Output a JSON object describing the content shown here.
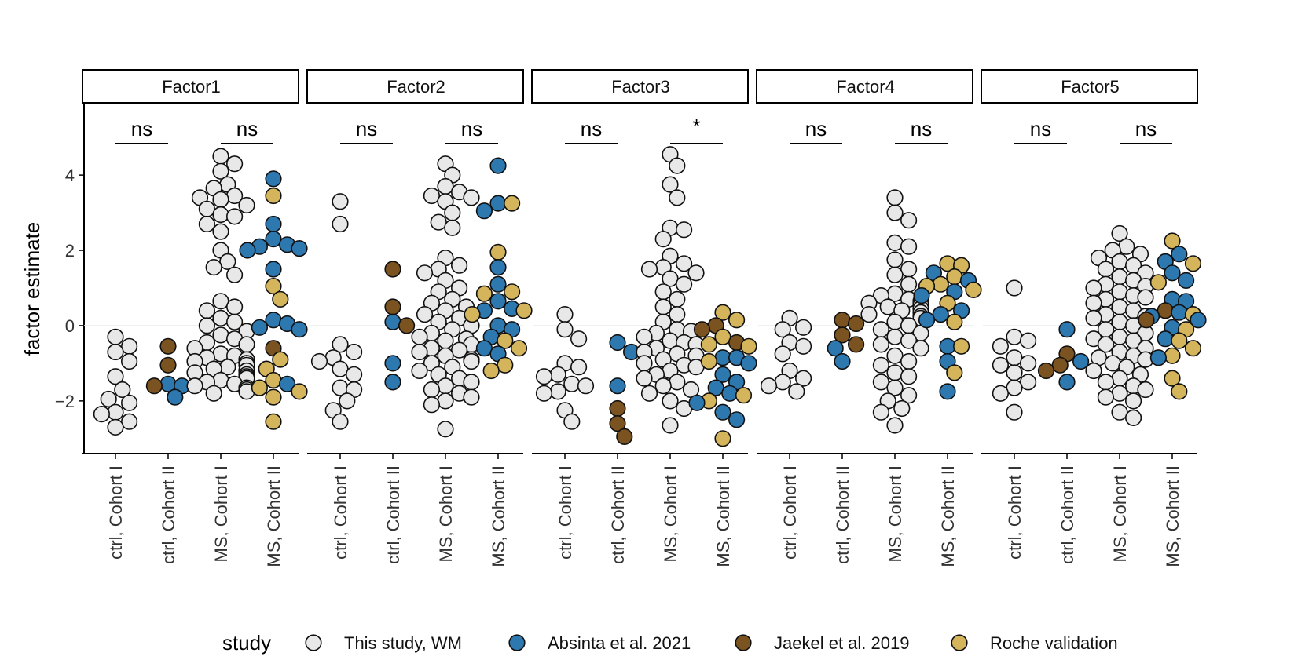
{
  "chart_data": {
    "type": "scatter",
    "subtype": "beeswarm, faceted",
    "ylabel": "factor estimate",
    "xlabel": "",
    "ylim": [
      -3.4,
      5.9
    ],
    "yticks": [
      -2,
      0,
      2,
      4
    ],
    "categories": [
      "ctrl, Cohort I",
      "ctrl, Cohort II",
      "MS, Cohort I",
      "MS, Cohort II"
    ],
    "legend": {
      "title": "study",
      "position": "bottom",
      "entries": [
        {
          "key": "wm",
          "label": "This study, WM",
          "color": "#e8e8e8"
        },
        {
          "key": "absinta",
          "label": "Absinta et al. 2021",
          "color": "#2e78b0"
        },
        {
          "key": "jaekel",
          "label": "Jaekel et al. 2019",
          "color": "#7a5320"
        },
        {
          "key": "roche",
          "label": "Roche validation",
          "color": "#d4b55c"
        }
      ]
    },
    "facets": [
      {
        "title": "Factor1",
        "comparisons": [
          "ns",
          "ns"
        ],
        "groups": [
          {
            "wm": [
              -0.3,
              -0.55,
              -0.95,
              -1.35,
              -1.7,
              -1.95,
              -2.05,
              -2.3,
              -2.35,
              -2.55,
              -2.7,
              -0.7
            ]
          },
          {
            "absinta": [
              -1.55,
              -1.6,
              -1.9
            ],
            "jaekel": [
              -1.05,
              -0.55,
              -1.6
            ]
          },
          {
            "wm": [
              4.5,
              4.3,
              4.1,
              3.75,
              3.65,
              3.45,
              3.4,
              3.35,
              3.2,
              3.1,
              2.95,
              2.9,
              2.7,
              2.5,
              2.0,
              1.7,
              1.55,
              1.35,
              0.65,
              0.5,
              0.4,
              0.2,
              0.1,
              0.0,
              -0.15,
              -0.25,
              -0.35,
              -0.45,
              -0.6,
              -0.75,
              -0.85,
              -0.9,
              -0.95,
              -1.0,
              -1.05,
              -1.1,
              -1.15,
              -1.2,
              -1.25,
              -1.3,
              -1.35,
              -1.4,
              -1.45,
              -1.5,
              -1.55,
              -1.6,
              -1.65,
              -1.7,
              -1.75,
              -1.8,
              -0.8,
              -1.0,
              -1.2,
              -1.4,
              -0.5
            ]
          },
          {
            "absinta": [
              3.9,
              2.7,
              2.3,
              2.15,
              2.1,
              2.05,
              2.0,
              1.5,
              0.15,
              0.05,
              -0.05,
              -0.1,
              -1.55
            ],
            "jaekel": [
              -0.6
            ],
            "roche": [
              3.45,
              1.05,
              0.7,
              -0.9,
              -1.15,
              -1.45,
              -1.65,
              -1.75,
              -1.9,
              -2.55
            ]
          }
        ]
      },
      {
        "title": "Factor2",
        "comparisons": [
          "ns",
          "ns"
        ],
        "groups": [
          {
            "wm": [
              3.3,
              2.7,
              -0.5,
              -0.7,
              -0.85,
              -0.95,
              -1.15,
              -1.3,
              -1.65,
              -1.7,
              -2.0,
              -2.25,
              -2.55
            ]
          },
          {
            "absinta": [
              0.1,
              -1.0,
              -1.5
            ],
            "jaekel": [
              1.5,
              0.5,
              0.0
            ]
          },
          {
            "wm": [
              4.3,
              4.0,
              3.7,
              3.55,
              3.45,
              3.4,
              3.3,
              3.0,
              2.75,
              2.6,
              1.8,
              1.6,
              1.5,
              1.4,
              1.2,
              1.0,
              0.9,
              0.7,
              0.6,
              0.5,
              0.4,
              0.3,
              0.2,
              0.1,
              0.0,
              -0.1,
              -0.2,
              -0.3,
              -0.4,
              -0.5,
              -0.6,
              -0.7,
              -0.8,
              -0.9,
              -1.0,
              -1.1,
              -1.2,
              -1.3,
              -1.4,
              -1.5,
              -1.6,
              -1.7,
              -1.8,
              -1.9,
              -2.0,
              -2.1,
              -2.75,
              -0.35,
              -0.65,
              -0.95
            ]
          },
          {
            "absinta": [
              4.25,
              3.25,
              3.05,
              1.55,
              1.1,
              0.65,
              0.45,
              0.4,
              0.0,
              -0.1,
              -0.3,
              -0.6,
              -0.75
            ],
            "roche": [
              3.25,
              1.95,
              0.9,
              0.85,
              0.4,
              0.3,
              -0.4,
              -0.6,
              -1.05,
              -1.2
            ]
          }
        ]
      },
      {
        "title": "Factor3",
        "comparisons": [
          "ns",
          "*"
        ],
        "groups": [
          {
            "wm": [
              0.3,
              -0.1,
              -0.35,
              -1.0,
              -1.1,
              -1.3,
              -1.35,
              -1.55,
              -1.6,
              -1.75,
              -1.8,
              -2.25,
              -2.55
            ]
          },
          {
            "absinta": [
              -0.45,
              -0.7,
              -1.6
            ],
            "jaekel": [
              -2.2,
              -2.6,
              -2.95
            ]
          },
          {
            "wm": [
              4.55,
              4.25,
              3.75,
              3.4,
              2.6,
              2.55,
              2.3,
              1.85,
              1.65,
              1.55,
              1.5,
              1.4,
              1.25,
              1.1,
              0.9,
              0.7,
              0.5,
              0.3,
              0.1,
              -0.1,
              -0.2,
              -0.3,
              -0.4,
              -0.5,
              -0.6,
              -0.7,
              -0.8,
              -0.9,
              -1.0,
              -1.1,
              -1.2,
              -1.3,
              -1.4,
              -1.5,
              -1.6,
              -1.7,
              -1.8,
              -2.0,
              -2.2,
              -2.65,
              -0.45,
              -0.75,
              -1.05,
              -0.15
            ]
          },
          {
            "absinta": [
              -0.85,
              -0.85,
              -1.0,
              -1.3,
              -1.5,
              -1.65,
              -1.8,
              -2.05,
              -2.3,
              -2.5
            ],
            "jaekel": [
              0.0,
              -0.1,
              -0.45
            ],
            "roche": [
              0.35,
              0.15,
              -0.3,
              -0.5,
              -0.55,
              -0.95,
              -1.85,
              -2.0,
              -3.0
            ]
          }
        ]
      },
      {
        "title": "Factor4",
        "comparisons": [
          "ns",
          "ns"
        ],
        "groups": [
          {
            "wm": [
              0.2,
              -0.05,
              -0.1,
              -0.45,
              -0.55,
              -0.75,
              -1.2,
              -1.4,
              -1.5,
              -1.6,
              -1.75
            ]
          },
          {
            "absinta": [
              -0.6,
              -0.95
            ],
            "jaekel": [
              -0.25,
              -0.5,
              0.15,
              0.05
            ]
          },
          {
            "wm": [
              3.4,
              3.0,
              2.8,
              2.2,
              2.1,
              1.75,
              1.5,
              1.35,
              1.1,
              0.85,
              0.8,
              0.7,
              0.65,
              0.6,
              0.55,
              0.5,
              0.45,
              0.4,
              0.35,
              0.3,
              0.2,
              0.1,
              0.0,
              -0.1,
              -0.2,
              -0.3,
              -0.4,
              -0.5,
              -0.6,
              -0.8,
              -0.95,
              -1.05,
              -1.25,
              -1.35,
              -1.5,
              -1.65,
              -1.85,
              -2.0,
              -2.2,
              -2.3,
              -2.65,
              0.6,
              0.45,
              0.25
            ]
          },
          {
            "absinta": [
              1.4,
              1.2,
              0.9,
              0.8,
              0.4,
              0.3,
              0.15,
              -0.55,
              -0.95,
              -1.75
            ],
            "roche": [
              1.65,
              1.6,
              1.3,
              1.1,
              1.05,
              0.95,
              0.6,
              0.1,
              -0.55,
              -1.25
            ]
          }
        ]
      },
      {
        "title": "Factor5",
        "comparisons": [
          "ns",
          "ns"
        ],
        "groups": [
          {
            "wm": [
              1.0,
              -0.3,
              -0.4,
              -0.55,
              -0.85,
              -1.0,
              -1.05,
              -1.25,
              -1.5,
              -1.65,
              -1.8,
              -2.3
            ]
          },
          {
            "absinta": [
              -0.1,
              -0.95,
              -1.5
            ],
            "jaekel": [
              -0.75,
              -1.05,
              -1.2
            ]
          },
          {
            "wm": [
              2.45,
              2.1,
              2.0,
              1.9,
              1.8,
              1.7,
              1.6,
              1.5,
              1.4,
              1.3,
              1.2,
              1.1,
              1.0,
              0.9,
              0.8,
              0.7,
              0.6,
              0.5,
              0.4,
              0.3,
              0.2,
              0.1,
              0.0,
              -0.1,
              -0.2,
              -0.3,
              -0.4,
              -0.5,
              -0.6,
              -0.7,
              -0.8,
              -0.9,
              -1.0,
              -1.1,
              -1.2,
              -1.3,
              -1.4,
              -1.5,
              -1.6,
              -1.7,
              -1.8,
              -1.9,
              -2.0,
              -2.3,
              -2.45,
              -0.85,
              1.05,
              0.75,
              -0.35,
              0.25
            ]
          },
          {
            "absinta": [
              1.9,
              1.7,
              1.4,
              1.2,
              0.7,
              0.65,
              0.35,
              0.25,
              0.15,
              -0.05,
              -0.35,
              -0.85
            ],
            "jaekel": [
              0.15,
              0.4
            ],
            "roche": [
              2.25,
              1.65,
              1.15,
              0.3,
              -0.1,
              -0.4,
              -0.6,
              -0.8,
              -1.4,
              -1.75
            ]
          }
        ]
      }
    ]
  }
}
